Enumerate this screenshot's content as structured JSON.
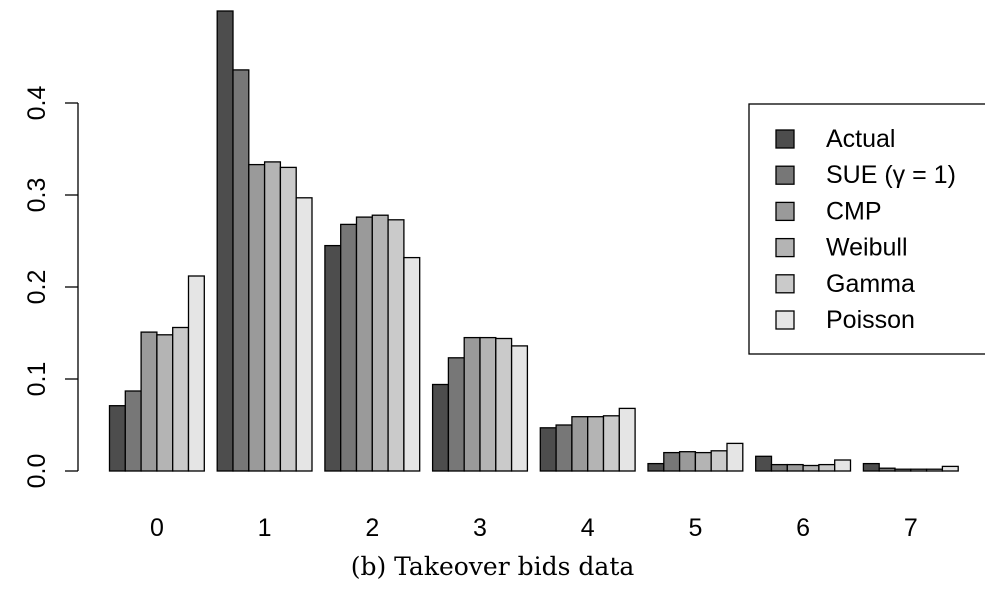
{
  "caption": "(b) Takeover bids data",
  "chart_data": {
    "type": "bar",
    "categories": [
      "0",
      "1",
      "2",
      "3",
      "4",
      "5",
      "6",
      "7"
    ],
    "ylim": [
      0,
      0.5
    ],
    "yticks": [
      "0.0",
      "0.1",
      "0.2",
      "0.3",
      "0.4"
    ],
    "ytick_values": [
      0,
      0.1,
      0.2,
      0.3,
      0.4
    ],
    "grid": false,
    "legend_position": "top-right",
    "series": [
      {
        "name": "Actual",
        "color": "#4d4d4d",
        "values": [
          0.071,
          0.5,
          0.245,
          0.094,
          0.047,
          0.008,
          0.016,
          0.008
        ]
      },
      {
        "name": "SUE (γ = 1)",
        "color": "#777777",
        "values": [
          0.087,
          0.436,
          0.268,
          0.123,
          0.05,
          0.02,
          0.007,
          0.003
        ]
      },
      {
        "name": "CMP",
        "color": "#9a9a9a",
        "values": [
          0.151,
          0.333,
          0.276,
          0.145,
          0.059,
          0.021,
          0.007,
          0.002
        ]
      },
      {
        "name": "Weibull",
        "color": "#b4b4b4",
        "values": [
          0.148,
          0.336,
          0.278,
          0.145,
          0.059,
          0.02,
          0.006,
          0.002
        ]
      },
      {
        "name": "Gamma",
        "color": "#cacaca",
        "values": [
          0.156,
          0.33,
          0.273,
          0.144,
          0.06,
          0.022,
          0.007,
          0.002
        ]
      },
      {
        "name": "Poisson",
        "color": "#e5e5e5",
        "values": [
          0.212,
          0.297,
          0.232,
          0.136,
          0.068,
          0.03,
          0.012,
          0.005
        ]
      }
    ]
  }
}
